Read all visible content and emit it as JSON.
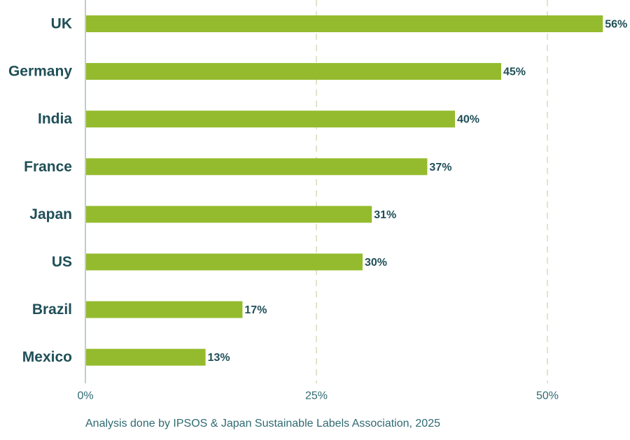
{
  "chart_data": {
    "type": "bar",
    "orientation": "horizontal",
    "categories": [
      "UK",
      "Germany",
      "India",
      "France",
      "Japan",
      "US",
      "Brazil",
      "Mexico"
    ],
    "values": [
      56,
      45,
      40,
      37,
      31,
      30,
      17,
      13
    ],
    "value_labels": [
      "56%",
      "45%",
      "40%",
      "37%",
      "31%",
      "30%",
      "17%",
      "13%"
    ],
    "xlim": [
      0,
      56
    ],
    "x_ticks": [
      0,
      25,
      50
    ],
    "x_tick_labels": [
      "0%",
      "25%",
      "50%"
    ],
    "grid": "vertical dashed at 25% and 50%",
    "bar_color": "#94bb2d",
    "gridline_color": "#cdd4a6",
    "axis_color": "#9aa9ab",
    "label_color": "#1f4f57",
    "tick_color": "#2f6a72"
  },
  "footer": {
    "source": "Analysis done by IPSOS & Japan Sustainable Labels Association, 2025"
  }
}
